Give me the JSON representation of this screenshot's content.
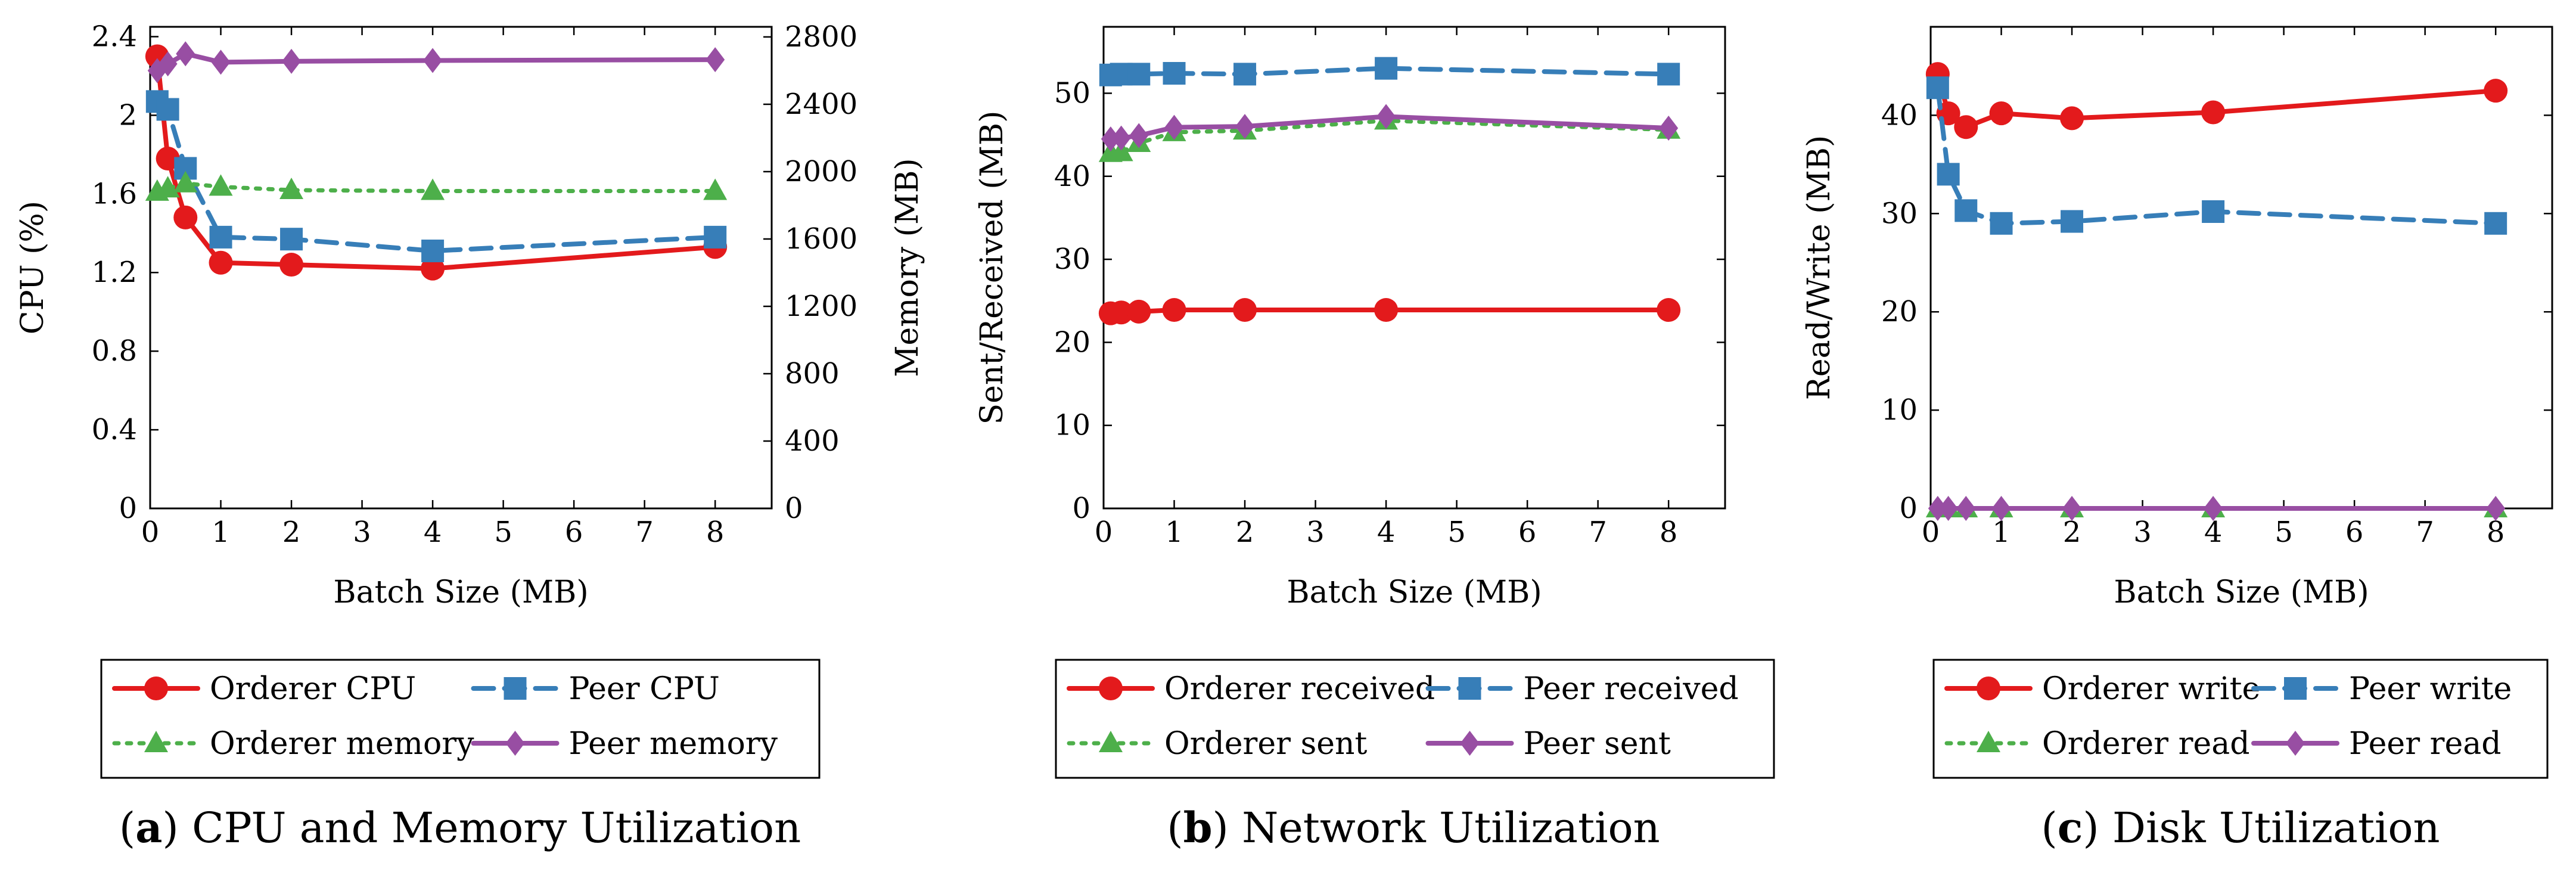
{
  "chart_data": [
    {
      "id": "a",
      "type": "line",
      "caption_letter": "a",
      "caption_text": ") CPU and Memory Utilization",
      "xlabel": "Batch Size (MB)",
      "ylabel": "CPU (%)",
      "y2label": "Memory (MB)",
      "xlim": [
        0,
        8.8
      ],
      "ylim": [
        0,
        2.45
      ],
      "y2lim": [
        0,
        2860
      ],
      "xticks": [
        0,
        1,
        2,
        3,
        4,
        5,
        6,
        7,
        8
      ],
      "xtick_labels": [
        "0",
        "1",
        "2",
        "3",
        "4",
        "5",
        "6",
        "7",
        "8"
      ],
      "yticks": [
        0,
        0.4,
        0.8,
        1.2,
        1.6,
        2,
        2.4
      ],
      "ytick_labels": [
        "0",
        "0.4",
        "0.8",
        "1.2",
        "1.6",
        "2",
        "2.4"
      ],
      "y2ticks": [
        0,
        400,
        800,
        1200,
        1600,
        2000,
        2400,
        2800
      ],
      "y2tick_labels": [
        "0",
        "400",
        "800",
        "1200",
        "1600",
        "2000",
        "2400",
        "2800"
      ],
      "legend_columns": 2,
      "series": [
        {
          "name": "Orderer CPU",
          "axis": "left",
          "color": "#e31a1c",
          "style": "solid",
          "marker": "circle",
          "x": [
            0.1,
            0.25,
            0.5,
            1,
            2,
            4,
            8
          ],
          "y": [
            2.3,
            1.78,
            1.48,
            1.25,
            1.24,
            1.22,
            1.33
          ]
        },
        {
          "name": "Peer CPU",
          "axis": "left",
          "color": "#377eb8",
          "style": "dashed",
          "marker": "square",
          "x": [
            0.1,
            0.25,
            0.5,
            1,
            2,
            4,
            8
          ],
          "y": [
            2.07,
            2.03,
            1.73,
            1.38,
            1.37,
            1.31,
            1.38
          ]
        },
        {
          "name": "Orderer memory",
          "axis": "right",
          "color": "#4daf4a",
          "style": "dotted",
          "marker": "triangle",
          "x": [
            0.1,
            0.25,
            0.5,
            1,
            2,
            4,
            8
          ],
          "y": [
            1880,
            1900,
            1930,
            1910,
            1890,
            1885,
            1885
          ]
        },
        {
          "name": "Peer memory",
          "axis": "right",
          "color": "#984ea3",
          "style": "solid",
          "marker": "diamond",
          "x": [
            0.1,
            0.25,
            0.5,
            1,
            2,
            4,
            8
          ],
          "y": [
            2600,
            2640,
            2700,
            2650,
            2655,
            2660,
            2665
          ]
        }
      ]
    },
    {
      "id": "b",
      "type": "line",
      "caption_letter": "b",
      "caption_text": ") Network Utilization",
      "xlabel": "Batch Size (MB)",
      "ylabel": "Sent/Received (MB)",
      "xlim": [
        0,
        8.8
      ],
      "ylim": [
        0,
        58
      ],
      "xticks": [
        0,
        1,
        2,
        3,
        4,
        5,
        6,
        7,
        8
      ],
      "xtick_labels": [
        "0",
        "1",
        "2",
        "3",
        "4",
        "5",
        "6",
        "7",
        "8"
      ],
      "yticks": [
        0,
        10,
        20,
        30,
        40,
        50
      ],
      "ytick_labels": [
        "0",
        "10",
        "20",
        "30",
        "40",
        "50"
      ],
      "legend_columns": 2,
      "series": [
        {
          "name": "Orderer received",
          "axis": "left",
          "color": "#e31a1c",
          "style": "solid",
          "marker": "circle",
          "x": [
            0.1,
            0.25,
            0.5,
            1,
            2,
            4,
            8
          ],
          "y": [
            23.5,
            23.6,
            23.7,
            23.9,
            23.9,
            23.9,
            23.9
          ]
        },
        {
          "name": "Peer received",
          "axis": "left",
          "color": "#377eb8",
          "style": "dashed",
          "marker": "square",
          "x": [
            0.1,
            0.25,
            0.5,
            1,
            2,
            4,
            8
          ],
          "y": [
            52.2,
            52.3,
            52.3,
            52.4,
            52.3,
            53.0,
            52.3
          ]
        },
        {
          "name": "Orderer sent",
          "axis": "left",
          "color": "#4daf4a",
          "style": "dotted",
          "marker": "triangle",
          "x": [
            0.1,
            0.25,
            0.5,
            1,
            2,
            4,
            8
          ],
          "y": [
            42.8,
            42.9,
            44.0,
            45.3,
            45.5,
            46.7,
            45.6
          ]
        },
        {
          "name": "Peer sent",
          "axis": "left",
          "color": "#984ea3",
          "style": "solid",
          "marker": "diamond",
          "x": [
            0.1,
            0.25,
            0.5,
            1,
            2,
            4,
            8
          ],
          "y": [
            44.5,
            44.6,
            44.9,
            45.9,
            46.0,
            47.2,
            45.8
          ]
        }
      ]
    },
    {
      "id": "c",
      "type": "line",
      "caption_letter": "c",
      "caption_text": ") Disk Utilization",
      "xlabel": "Batch Size (MB)",
      "ylabel": "Read/Write (MB)",
      "xlim": [
        0,
        8.8
      ],
      "ylim": [
        0,
        49
      ],
      "xticks": [
        0,
        1,
        2,
        3,
        4,
        5,
        6,
        7,
        8
      ],
      "xtick_labels": [
        "0",
        "1",
        "2",
        "3",
        "4",
        "5",
        "6",
        "7",
        "8"
      ],
      "yticks": [
        0,
        10,
        20,
        30,
        40
      ],
      "ytick_labels": [
        "0",
        "10",
        "20",
        "30",
        "40"
      ],
      "legend_columns": 2,
      "series": [
        {
          "name": "Orderer write",
          "axis": "left",
          "color": "#e31a1c",
          "style": "solid",
          "marker": "circle",
          "x": [
            0.1,
            0.25,
            0.5,
            1,
            2,
            4,
            8
          ],
          "y": [
            44.2,
            40.2,
            38.8,
            40.2,
            39.7,
            40.3,
            42.5
          ]
        },
        {
          "name": "Peer write",
          "axis": "left",
          "color": "#377eb8",
          "style": "dashed",
          "marker": "square",
          "x": [
            0.1,
            0.25,
            0.5,
            1,
            2,
            4,
            8
          ],
          "y": [
            42.8,
            34.0,
            30.3,
            29.0,
            29.2,
            30.2,
            29.0
          ]
        },
        {
          "name": "Orderer read",
          "axis": "left",
          "color": "#4daf4a",
          "style": "dotted",
          "marker": "triangle",
          "x": [
            0.1,
            0.25,
            0.5,
            1,
            2,
            4,
            8
          ],
          "y": [
            0,
            0,
            0,
            0,
            0,
            0,
            0
          ]
        },
        {
          "name": "Peer read",
          "axis": "left",
          "color": "#984ea3",
          "style": "solid",
          "marker": "diamond",
          "x": [
            0.1,
            0.25,
            0.5,
            1,
            2,
            4,
            8
          ],
          "y": [
            0,
            0,
            0,
            0,
            0,
            0,
            0
          ]
        }
      ]
    }
  ]
}
